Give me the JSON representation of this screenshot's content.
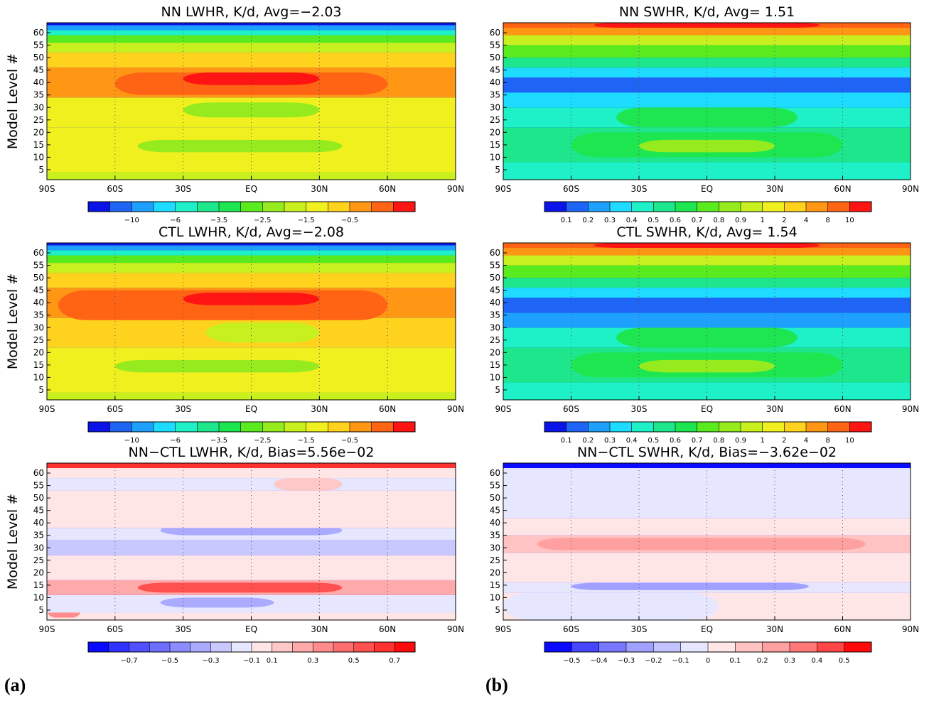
{
  "figure_labels": {
    "a": "(a)",
    "b": "(b)"
  },
  "shared": {
    "ylabel": "Model Level #",
    "yticks": [
      "5",
      "10",
      "15",
      "20",
      "25",
      "30",
      "35",
      "40",
      "45",
      "50",
      "55",
      "60"
    ],
    "xticks": [
      "90S",
      "60S",
      "30S",
      "EQ",
      "30N",
      "60N",
      "90N"
    ],
    "xticks_deg": [
      -90,
      -60,
      -30,
      0,
      30,
      60,
      90
    ],
    "ylim": [
      1,
      64
    ]
  },
  "colorbars": {
    "lw": {
      "colors": [
        "#0a14e8",
        "#1e64f5",
        "#1ea0ff",
        "#1edcff",
        "#1ef0c8",
        "#1ee68c",
        "#1ee650",
        "#5aeb1e",
        "#96eb1e",
        "#c8f01e",
        "#f0f01e",
        "#ffd21e",
        "#ff9614",
        "#ff6414",
        "#ff1414"
      ],
      "labels": [
        "-10",
        "-6",
        "-3.5",
        "-2.5",
        "-1.5",
        "-0.5"
      ]
    },
    "sw": {
      "colors": [
        "#0a14e8",
        "#1e64f5",
        "#1ea0ff",
        "#1edcff",
        "#1ef0c8",
        "#1ee68c",
        "#1ee650",
        "#5aeb1e",
        "#96eb1e",
        "#c8f01e",
        "#f0f01e",
        "#ffd21e",
        "#ff9614",
        "#ff6414",
        "#ff1414"
      ],
      "labels": [
        "0.1",
        "0.2",
        "0.3",
        "0.4",
        "0.5",
        "0.6",
        "0.7",
        "0.8",
        "0.9",
        "1",
        "2",
        "4",
        "8",
        "10"
      ]
    },
    "lw_diff": {
      "colors": [
        "#0a0aff",
        "#3232ff",
        "#5050ff",
        "#6e6eff",
        "#8c8cff",
        "#aaaaff",
        "#c8c8ff",
        "#e6e6ff",
        "#ffe6e6",
        "#ffc8c8",
        "#ffaaaa",
        "#ff8c8c",
        "#ff6e6e",
        "#ff5050",
        "#ff3232",
        "#ff0a0a"
      ],
      "labels": [
        "-0.7",
        "-0.5",
        "-0.3",
        "-0.1",
        "0.1",
        "0.3",
        "0.5",
        "0.7"
      ]
    },
    "sw_diff": {
      "colors": [
        "#0a0aff",
        "#4646ff",
        "#7878ff",
        "#a0a0ff",
        "#c3c3ff",
        "#e6e6ff",
        "#ffe6e6",
        "#ffc3c3",
        "#ffa0a0",
        "#ff7878",
        "#ff4646",
        "#ff0a0a"
      ],
      "labels": [
        "-0.5",
        "-0.4",
        "-0.3",
        "-0.2",
        "-0.1",
        "0",
        "0.1",
        "0.2",
        "0.3",
        "0.4",
        "0.5"
      ]
    }
  },
  "chart_data": [
    {
      "type": "heatmap",
      "title": "NN LWHR, K/d, Avg=−2.03",
      "ylabel": "Model Level #",
      "xlim": [
        -90,
        90
      ],
      "ylim": [
        1,
        64
      ],
      "colorbar": "lw",
      "bands": [
        {
          "from": 1,
          "to": 4,
          "level": 9
        },
        {
          "from": 4,
          "to": 22,
          "level": 10
        },
        {
          "from": 12,
          "to": 17,
          "level": 8,
          "lat_from": -50,
          "lat_to": 40
        },
        {
          "from": 22,
          "to": 34,
          "level": 10
        },
        {
          "from": 26,
          "to": 32,
          "level": 8,
          "lat_from": -30,
          "lat_to": 30
        },
        {
          "from": 34,
          "to": 46,
          "level": 12
        },
        {
          "from": 35,
          "to": 44,
          "level": 13,
          "lat_from": -60,
          "lat_to": 60
        },
        {
          "from": 39,
          "to": 44,
          "level": 14,
          "lat_from": -30,
          "lat_to": 30
        },
        {
          "from": 46,
          "to": 52,
          "level": 11
        },
        {
          "from": 52,
          "to": 56,
          "level": 9
        },
        {
          "from": 56,
          "to": 59,
          "level": 7
        },
        {
          "from": 59,
          "to": 61,
          "level": 4
        },
        {
          "from": 61,
          "to": 63,
          "level": 2
        },
        {
          "from": 63,
          "to": 64,
          "level": 0
        }
      ]
    },
    {
      "type": "heatmap",
      "title": "NN SWHR, K/d, Avg= 1.51",
      "ylabel": "",
      "xlim": [
        -90,
        90
      ],
      "ylim": [
        1,
        64
      ],
      "colorbar": "sw",
      "bands": [
        {
          "from": 1,
          "to": 8,
          "level": 4
        },
        {
          "from": 8,
          "to": 22,
          "level": 5
        },
        {
          "from": 10,
          "to": 20,
          "level": 6,
          "lat_from": -60,
          "lat_to": 60
        },
        {
          "from": 12,
          "to": 17,
          "level": 8,
          "lat_from": -30,
          "lat_to": 30
        },
        {
          "from": 22,
          "to": 30,
          "level": 4
        },
        {
          "from": 22,
          "to": 30,
          "level": 6,
          "lat_from": -40,
          "lat_to": 40
        },
        {
          "from": 30,
          "to": 36,
          "level": 3
        },
        {
          "from": 36,
          "to": 42,
          "level": 1
        },
        {
          "from": 42,
          "to": 46,
          "level": 3
        },
        {
          "from": 46,
          "to": 50,
          "level": 5
        },
        {
          "from": 50,
          "to": 55,
          "level": 7
        },
        {
          "from": 55,
          "to": 59,
          "level": 9
        },
        {
          "from": 59,
          "to": 62,
          "level": 12
        },
        {
          "from": 62,
          "to": 64,
          "level": 13
        },
        {
          "from": 62,
          "to": 64,
          "level": 14,
          "lat_from": -50,
          "lat_to": 50
        }
      ]
    },
    {
      "type": "heatmap",
      "title": "CTL LWHR, K/d, Avg=−2.08",
      "ylabel": "Model Level #",
      "xlim": [
        -90,
        90
      ],
      "ylim": [
        1,
        64
      ],
      "colorbar": "lw",
      "bands": [
        {
          "from": 1,
          "to": 4,
          "level": 9
        },
        {
          "from": 4,
          "to": 22,
          "level": 10
        },
        {
          "from": 12,
          "to": 17,
          "level": 8,
          "lat_from": -60,
          "lat_to": 30
        },
        {
          "from": 22,
          "to": 34,
          "level": 11
        },
        {
          "from": 24,
          "to": 32,
          "level": 9,
          "lat_from": -20,
          "lat_to": 30
        },
        {
          "from": 34,
          "to": 46,
          "level": 12
        },
        {
          "from": 33,
          "to": 45,
          "level": 13,
          "lat_from": -85,
          "lat_to": 60
        },
        {
          "from": 39,
          "to": 44,
          "level": 14,
          "lat_from": -30,
          "lat_to": 30
        },
        {
          "from": 46,
          "to": 52,
          "level": 11
        },
        {
          "from": 52,
          "to": 56,
          "level": 9
        },
        {
          "from": 56,
          "to": 59,
          "level": 7
        },
        {
          "from": 59,
          "to": 61,
          "level": 4
        },
        {
          "from": 61,
          "to": 63,
          "level": 2
        },
        {
          "from": 63,
          "to": 64,
          "level": 0
        }
      ]
    },
    {
      "type": "heatmap",
      "title": "CTL SWHR, K/d, Avg= 1.54",
      "ylabel": "",
      "xlim": [
        -90,
        90
      ],
      "ylim": [
        1,
        64
      ],
      "colorbar": "sw",
      "bands": [
        {
          "from": 1,
          "to": 8,
          "level": 4
        },
        {
          "from": 8,
          "to": 22,
          "level": 5
        },
        {
          "from": 10,
          "to": 20,
          "level": 6,
          "lat_from": -60,
          "lat_to": 60
        },
        {
          "from": 12,
          "to": 17,
          "level": 8,
          "lat_from": -30,
          "lat_to": 30
        },
        {
          "from": 22,
          "to": 30,
          "level": 4
        },
        {
          "from": 22,
          "to": 30,
          "level": 6,
          "lat_from": -40,
          "lat_to": 40
        },
        {
          "from": 30,
          "to": 36,
          "level": 2
        },
        {
          "from": 36,
          "to": 42,
          "level": 1
        },
        {
          "from": 42,
          "to": 46,
          "level": 3
        },
        {
          "from": 46,
          "to": 50,
          "level": 5
        },
        {
          "from": 50,
          "to": 55,
          "level": 7
        },
        {
          "from": 55,
          "to": 59,
          "level": 9
        },
        {
          "from": 59,
          "to": 62,
          "level": 12
        },
        {
          "from": 62,
          "to": 64,
          "level": 13
        },
        {
          "from": 62,
          "to": 64,
          "level": 14,
          "lat_from": -50,
          "lat_to": 50
        }
      ]
    },
    {
      "type": "heatmap",
      "title": "NN−CTL LWHR, K/d, Bias=5.56e−02",
      "ylabel": "Model Level #",
      "xlim": [
        -90,
        90
      ],
      "ylim": [
        1,
        64
      ],
      "colorbar": "lw_diff",
      "bands": [
        {
          "from": 1,
          "to": 4,
          "level": 8
        },
        {
          "from": 2,
          "to": 8,
          "level": 11,
          "lat_from": -90,
          "lat_to": -75
        },
        {
          "from": 4,
          "to": 11,
          "level": 7
        },
        {
          "from": 6,
          "to": 10,
          "level": 5,
          "lat_from": -40,
          "lat_to": 10
        },
        {
          "from": 11,
          "to": 17,
          "level": 10
        },
        {
          "from": 12,
          "to": 16,
          "level": 13,
          "lat_from": -50,
          "lat_to": 40
        },
        {
          "from": 17,
          "to": 27,
          "level": 8
        },
        {
          "from": 27,
          "to": 33,
          "level": 6
        },
        {
          "from": 33,
          "to": 38,
          "level": 7
        },
        {
          "from": 35,
          "to": 39,
          "level": 5,
          "lat_from": -40,
          "lat_to": 40
        },
        {
          "from": 38,
          "to": 53,
          "level": 8
        },
        {
          "from": 53,
          "to": 58,
          "level": 7
        },
        {
          "from": 53,
          "to": 58,
          "level": 9,
          "lat_from": 10,
          "lat_to": 40
        },
        {
          "from": 58,
          "to": 62,
          "level": 8
        },
        {
          "from": 62,
          "to": 64,
          "level": 14
        }
      ]
    },
    {
      "type": "heatmap",
      "title": "NN−CTL SWHR, K/d, Bias=−3.62e−02",
      "ylabel": "",
      "xlim": [
        -90,
        90
      ],
      "ylim": [
        1,
        64
      ],
      "colorbar": "sw_diff",
      "bands": [
        {
          "from": 1,
          "to": 12,
          "level": 6
        },
        {
          "from": 1,
          "to": 12,
          "level": 5,
          "lat_from": -90,
          "lat_to": 5
        },
        {
          "from": 12,
          "to": 16,
          "level": 5
        },
        {
          "from": 13,
          "to": 16,
          "level": 3,
          "lat_from": -60,
          "lat_to": 45
        },
        {
          "from": 16,
          "to": 28,
          "level": 6
        },
        {
          "from": 28,
          "to": 35,
          "level": 7
        },
        {
          "from": 29,
          "to": 34,
          "level": 8,
          "lat_from": -75,
          "lat_to": 70
        },
        {
          "from": 35,
          "to": 42,
          "level": 6
        },
        {
          "from": 42,
          "to": 62,
          "level": 5
        },
        {
          "from": 62,
          "to": 64,
          "level": 0
        }
      ]
    }
  ]
}
